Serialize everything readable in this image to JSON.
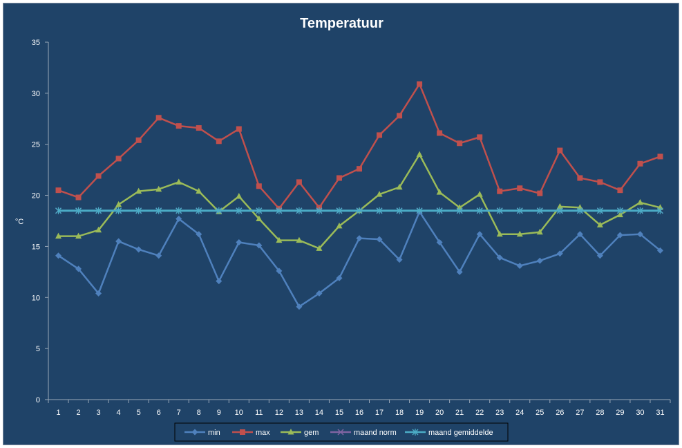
{
  "chart_data": {
    "type": "line",
    "title": "Temperatuur",
    "xlabel": "",
    "ylabel": "°C",
    "ylim": [
      0,
      35
    ],
    "yticks": [
      0,
      5,
      10,
      15,
      20,
      25,
      30,
      35
    ],
    "categories": [
      "1",
      "2",
      "3",
      "4",
      "5",
      "6",
      "7",
      "8",
      "9",
      "10",
      "11",
      "12",
      "13",
      "14",
      "15",
      "16",
      "17",
      "18",
      "19",
      "20",
      "21",
      "22",
      "23",
      "24",
      "25",
      "26",
      "27",
      "28",
      "29",
      "30",
      "31"
    ],
    "grid": false,
    "legend_position": "bottom",
    "series": [
      {
        "name": "min",
        "color": "#4f81bd",
        "marker": "diamond",
        "values": [
          14.1,
          12.8,
          10.4,
          15.5,
          14.7,
          14.1,
          17.7,
          16.2,
          11.6,
          15.4,
          15.1,
          12.6,
          9.1,
          10.4,
          11.9,
          15.8,
          15.7,
          13.7,
          18.4,
          15.4,
          12.5,
          16.2,
          13.9,
          13.1,
          13.6,
          14.3,
          16.2,
          14.1,
          16.1,
          16.2,
          14.6
        ]
      },
      {
        "name": "max",
        "color": "#c0504d",
        "marker": "square",
        "values": [
          20.5,
          19.8,
          21.9,
          23.6,
          25.4,
          27.6,
          26.8,
          26.6,
          25.3,
          26.5,
          20.9,
          18.7,
          21.3,
          18.8,
          21.7,
          22.6,
          25.9,
          27.8,
          30.9,
          26.1,
          25.1,
          25.7,
          20.4,
          20.7,
          20.2,
          24.4,
          21.7,
          21.3,
          20.5,
          23.1,
          23.8
        ]
      },
      {
        "name": "gem",
        "color": "#9bbb59",
        "marker": "triangle",
        "values": [
          16.0,
          16.0,
          16.6,
          19.1,
          20.4,
          20.6,
          21.3,
          20.4,
          18.4,
          19.9,
          17.7,
          15.6,
          15.6,
          14.8,
          17.0,
          18.5,
          20.1,
          20.8,
          24.0,
          20.3,
          18.8,
          20.1,
          16.2,
          16.2,
          16.4,
          18.9,
          18.8,
          17.1,
          18.1,
          19.3,
          18.8
        ]
      },
      {
        "name": "maand norm",
        "color": "#8064a2",
        "marker": "x",
        "values": [
          18.5,
          18.5,
          18.5,
          18.5,
          18.5,
          18.5,
          18.5,
          18.5,
          18.5,
          18.5,
          18.5,
          18.5,
          18.5,
          18.5,
          18.5,
          18.5,
          18.5,
          18.5,
          18.5,
          18.5,
          18.5,
          18.5,
          18.5,
          18.5,
          18.5,
          18.5,
          18.5,
          18.5,
          18.5,
          18.5,
          18.5
        ]
      },
      {
        "name": "maand gemiddelde",
        "color": "#4bacc6",
        "marker": "star",
        "values": [
          18.5,
          18.5,
          18.5,
          18.5,
          18.5,
          18.5,
          18.5,
          18.5,
          18.5,
          18.5,
          18.5,
          18.5,
          18.5,
          18.5,
          18.5,
          18.5,
          18.5,
          18.5,
          18.5,
          18.5,
          18.5,
          18.5,
          18.5,
          18.5,
          18.5,
          18.5,
          18.5,
          18.5,
          18.5,
          18.5,
          18.5
        ]
      }
    ]
  }
}
